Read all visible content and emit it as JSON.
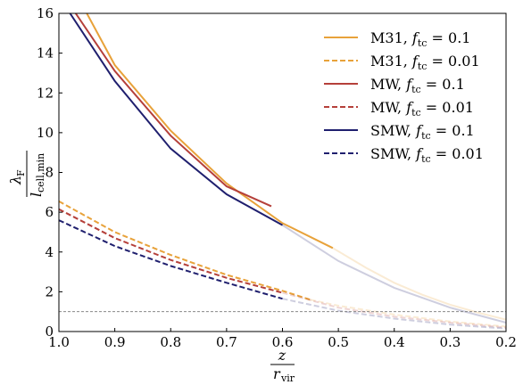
{
  "chart_data": {
    "type": "line",
    "title": "",
    "xlabel": {
      "numerator": "z",
      "denominator": "r",
      "denominator_subscript": "vir"
    },
    "ylabel": {
      "numerator": "λ",
      "numerator_subscript": "F",
      "denominator": "l",
      "denominator_subscript": "cell,min"
    },
    "xlim": [
      1.0,
      0.2
    ],
    "ylim": [
      0,
      16
    ],
    "x_inverted": true,
    "xticks": [
      "1.0",
      "0.9",
      "0.8",
      "0.7",
      "0.6",
      "0.5",
      "0.4",
      "0.3",
      "0.2"
    ],
    "yticks": [
      "0",
      "2",
      "4",
      "6",
      "8",
      "10",
      "12",
      "14",
      "16"
    ],
    "reference_line": {
      "y": 1.0,
      "style": "dashed",
      "color": "#777777"
    },
    "legend_position": "top-right",
    "grid": false,
    "series": [
      {
        "name": "M31, f_tc = 0.1",
        "legend_label": "M31,",
        "legend_param": "0.1",
        "color": "#E8A23A",
        "linestyle": "solid",
        "solid_until": 0.51,
        "points": [
          [
            0.95,
            16.0
          ],
          [
            0.9,
            13.4
          ],
          [
            0.8,
            10.1
          ],
          [
            0.7,
            7.45
          ],
          [
            0.6,
            5.45
          ],
          [
            0.51,
            4.2
          ],
          [
            0.45,
            3.2
          ],
          [
            0.4,
            2.45
          ],
          [
            0.35,
            1.85
          ],
          [
            0.3,
            1.35
          ],
          [
            0.25,
            0.95
          ],
          [
            0.2,
            0.6
          ]
        ]
      },
      {
        "name": "M31, f_tc = 0.01",
        "legend_label": "M31,",
        "legend_param": "0.01",
        "color": "#E8A23A",
        "linestyle": "dashed",
        "solid_until": 0.55,
        "points": [
          [
            1.0,
            6.55
          ],
          [
            0.9,
            5.0
          ],
          [
            0.8,
            3.85
          ],
          [
            0.7,
            2.85
          ],
          [
            0.6,
            2.05
          ],
          [
            0.55,
            1.6
          ],
          [
            0.5,
            1.3
          ],
          [
            0.4,
            0.85
          ],
          [
            0.3,
            0.5
          ],
          [
            0.2,
            0.25
          ]
        ]
      },
      {
        "name": "MW, f_tc = 0.1",
        "legend_label": "MW,",
        "legend_param": "0.1",
        "color": "#B5403A",
        "linestyle": "solid",
        "solid_until": 0.62,
        "points": [
          [
            0.97,
            16.0
          ],
          [
            0.9,
            13.1
          ],
          [
            0.8,
            9.85
          ],
          [
            0.7,
            7.3
          ],
          [
            0.62,
            6.3
          ]
        ]
      },
      {
        "name": "MW, f_tc = 0.01",
        "legend_label": "MW,",
        "legend_param": "0.01",
        "color": "#B5403A",
        "linestyle": "dashed",
        "solid_until": 0.6,
        "points": [
          [
            1.0,
            6.15
          ],
          [
            0.9,
            4.7
          ],
          [
            0.8,
            3.6
          ],
          [
            0.7,
            2.7
          ],
          [
            0.6,
            1.95
          ],
          [
            0.5,
            1.2
          ],
          [
            0.4,
            0.75
          ],
          [
            0.3,
            0.45
          ],
          [
            0.2,
            0.2
          ]
        ]
      },
      {
        "name": "SMW, f_tc = 0.1",
        "legend_label": "SMW,",
        "legend_param": "0.1",
        "color": "#1F1F6E",
        "linestyle": "solid",
        "solid_until": 0.6,
        "points": [
          [
            0.98,
            16.0
          ],
          [
            0.9,
            12.6
          ],
          [
            0.8,
            9.2
          ],
          [
            0.7,
            6.9
          ],
          [
            0.6,
            5.35
          ],
          [
            0.5,
            3.55
          ],
          [
            0.4,
            2.2
          ],
          [
            0.3,
            1.2
          ],
          [
            0.2,
            0.45
          ]
        ]
      },
      {
        "name": "SMW, f_tc = 0.01",
        "legend_label": "SMW,",
        "legend_param": "0.01",
        "color": "#1F1F6E",
        "linestyle": "dashed",
        "solid_until": 0.6,
        "points": [
          [
            1.0,
            5.6
          ],
          [
            0.9,
            4.3
          ],
          [
            0.8,
            3.3
          ],
          [
            0.7,
            2.45
          ],
          [
            0.6,
            1.65
          ],
          [
            0.5,
            1.05
          ],
          [
            0.4,
            0.65
          ],
          [
            0.3,
            0.35
          ],
          [
            0.2,
            0.15
          ]
        ]
      }
    ]
  }
}
